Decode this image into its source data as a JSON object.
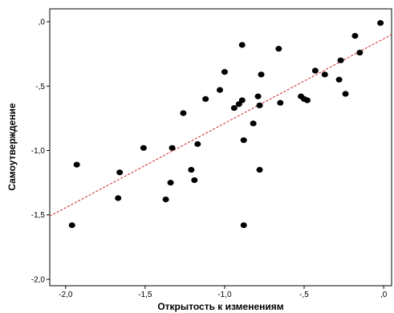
{
  "chart_data": {
    "type": "scatter",
    "xlabel": "Открытость к изменениям",
    "ylabel": "Самоутверждение",
    "xlim": [
      -2.1,
      0.05
    ],
    "ylim": [
      -2.05,
      0.1
    ],
    "x_ticks": [
      {
        "value": -2.0,
        "label": "-2,0"
      },
      {
        "value": -1.5,
        "label": "-1,5"
      },
      {
        "value": -1.0,
        "label": "-1,0"
      },
      {
        "value": -0.5,
        "label": "-,5"
      },
      {
        "value": 0.0,
        "label": ",0"
      }
    ],
    "y_ticks": [
      {
        "value": 0.0,
        "label": ",0"
      },
      {
        "value": -0.5,
        "label": "-,5"
      },
      {
        "value": -1.0,
        "label": "-1,0"
      },
      {
        "value": -1.5,
        "label": "-1,5"
      },
      {
        "value": -2.0,
        "label": "-2,0"
      }
    ],
    "grid": false,
    "points": [
      {
        "x": -1.96,
        "y": -1.58
      },
      {
        "x": -1.93,
        "y": -1.11
      },
      {
        "x": -1.67,
        "y": -1.37
      },
      {
        "x": -1.66,
        "y": -1.17
      },
      {
        "x": -1.51,
        "y": -0.98
      },
      {
        "x": -1.37,
        "y": -1.38
      },
      {
        "x": -1.34,
        "y": -1.25
      },
      {
        "x": -1.33,
        "y": -0.98
      },
      {
        "x": -1.26,
        "y": -0.71
      },
      {
        "x": -1.21,
        "y": -1.15
      },
      {
        "x": -1.19,
        "y": -1.23
      },
      {
        "x": -1.17,
        "y": -0.95
      },
      {
        "x": -1.12,
        "y": -0.6
      },
      {
        "x": -1.03,
        "y": -0.53
      },
      {
        "x": -1.0,
        "y": -0.39
      },
      {
        "x": -0.94,
        "y": -0.67
      },
      {
        "x": -0.91,
        "y": -0.64
      },
      {
        "x": -0.89,
        "y": -0.61
      },
      {
        "x": -0.89,
        "y": -0.18
      },
      {
        "x": -0.88,
        "y": -1.58
      },
      {
        "x": -0.88,
        "y": -0.92
      },
      {
        "x": -0.82,
        "y": -0.79
      },
      {
        "x": -0.79,
        "y": -0.58
      },
      {
        "x": -0.78,
        "y": -0.65
      },
      {
        "x": -0.78,
        "y": -1.15
      },
      {
        "x": -0.77,
        "y": -0.41
      },
      {
        "x": -0.66,
        "y": -0.21
      },
      {
        "x": -0.65,
        "y": -0.63
      },
      {
        "x": -0.52,
        "y": -0.58
      },
      {
        "x": -0.5,
        "y": -0.6
      },
      {
        "x": -0.48,
        "y": -0.61
      },
      {
        "x": -0.43,
        "y": -0.38
      },
      {
        "x": -0.37,
        "y": -0.41
      },
      {
        "x": -0.28,
        "y": -0.45
      },
      {
        "x": -0.27,
        "y": -0.3
      },
      {
        "x": -0.24,
        "y": -0.56
      },
      {
        "x": -0.18,
        "y": -0.11
      },
      {
        "x": -0.15,
        "y": -0.24
      },
      {
        "x": -0.02,
        "y": -0.01
      }
    ],
    "fit_line": {
      "x": [
        -2.1,
        0.05
      ],
      "y": [
        -1.51,
        -0.1
      ],
      "style": "dashed",
      "color": "#cc2222"
    },
    "point_color": "#000000"
  }
}
